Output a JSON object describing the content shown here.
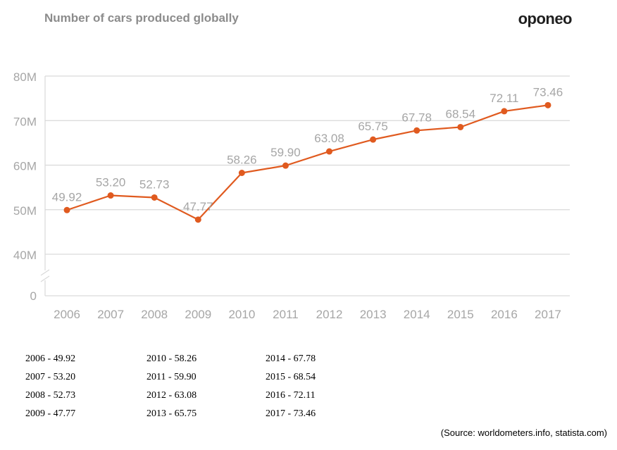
{
  "header": {
    "title": "Number of cars produced globally",
    "brand": "oponeo"
  },
  "chart_data": {
    "type": "line",
    "title": "Number of cars produced globally",
    "xlabel": "",
    "ylabel": "",
    "categories": [
      "2006",
      "2007",
      "2008",
      "2009",
      "2010",
      "2011",
      "2012",
      "2013",
      "2014",
      "2015",
      "2016",
      "2017"
    ],
    "series": [
      {
        "values": [
          49.92,
          53.2,
          52.73,
          47.77,
          58.26,
          59.9,
          63.08,
          65.75,
          67.78,
          68.54,
          72.11,
          73.46
        ]
      }
    ],
    "value_labels": [
      "49.92",
      "53.20",
      "52.73",
      "47.77",
      "58.26",
      "59.90",
      "63.08",
      "65.75",
      "67.78",
      "68.54",
      "72.11",
      "73.46"
    ],
    "ylim": [
      40,
      80
    ],
    "y_ticks": [
      {
        "value": 80,
        "label": "80M"
      },
      {
        "value": 70,
        "label": "70M"
      },
      {
        "value": 60,
        "label": "60M"
      },
      {
        "value": 50,
        "label": "50M"
      },
      {
        "value": 40,
        "label": "40M"
      }
    ],
    "y_zero_label": "0",
    "axis_break": true,
    "grid": true,
    "line_color": "#e05a1f"
  },
  "table": {
    "columns": [
      [
        "2006 - 49.92",
        "2007 - 53.20",
        "2008 - 52.73",
        "2009 - 47.77"
      ],
      [
        "2010 - 58.26",
        "2011 - 59.90",
        "2012 - 63.08",
        "2013 - 65.75"
      ],
      [
        "2014 - 67.78",
        "2015 - 68.54",
        "2016 - 72.11",
        "2017 - 73.46"
      ]
    ]
  },
  "source": "(Source: worldometers.info, statista.com)"
}
